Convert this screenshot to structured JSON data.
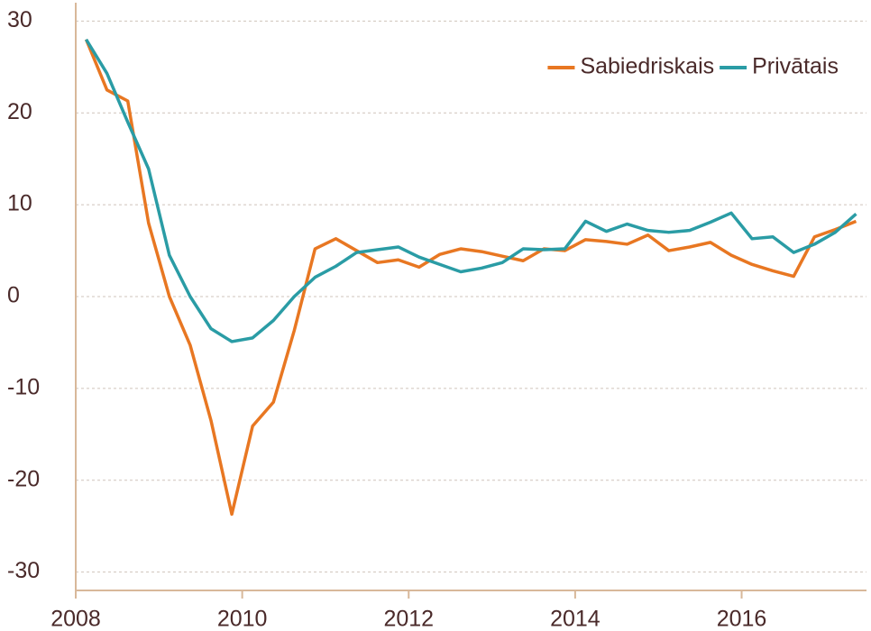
{
  "chart_data": {
    "type": "line",
    "x": [
      2008.125,
      2008.375,
      2008.625,
      2008.875,
      2009.125,
      2009.375,
      2009.625,
      2009.875,
      2010.125,
      2010.375,
      2010.625,
      2010.875,
      2011.125,
      2011.375,
      2011.625,
      2011.875,
      2012.125,
      2012.375,
      2012.625,
      2012.875,
      2013.125,
      2013.375,
      2013.625,
      2013.875,
      2014.125,
      2014.375,
      2014.625,
      2014.875,
      2015.125,
      2015.375,
      2015.625,
      2015.875,
      2016.125,
      2016.375,
      2016.625,
      2016.875,
      2017.125,
      2017.375
    ],
    "series": [
      {
        "name": "Sabiedriskais",
        "color": "#e87722",
        "values": [
          28,
          22.5,
          21.3,
          8,
          0,
          -5.3,
          -13.5,
          -23.7,
          -14.1,
          -11.5,
          -3.7,
          5.2,
          6.3,
          5.0,
          3.7,
          4.0,
          3.2,
          4.6,
          5.2,
          4.9,
          4.4,
          3.9,
          5.2,
          5.0,
          6.2,
          6.0,
          5.7,
          6.7,
          5.0,
          5.4,
          5.9,
          4.5,
          3.5,
          2.8,
          2.2,
          6.5,
          7.3,
          8.2
        ]
      },
      {
        "name": "Privātais",
        "color": "#2a9ca5",
        "values": [
          28,
          24.3,
          19,
          13.9,
          4.5,
          0,
          -3.5,
          -4.9,
          -4.5,
          -2.6,
          0,
          2.1,
          3.3,
          4.8,
          5.1,
          5.4,
          4.3,
          3.5,
          2.7,
          3.1,
          3.7,
          5.2,
          5.1,
          5.2,
          8.2,
          7.1,
          7.9,
          7.2,
          7.0,
          7.2,
          8.1,
          9.1,
          6.3,
          6.5,
          4.8,
          5.7,
          7.0,
          9.0
        ]
      }
    ],
    "xlim": [
      2008,
      2017.5
    ],
    "xticks": [
      2008,
      2010,
      2012,
      2014,
      2016
    ],
    "ylim": [
      -32,
      32
    ],
    "yticks": [
      -30,
      -20,
      -10,
      0,
      10,
      20,
      30
    ],
    "grid": true,
    "legend": "upper right"
  }
}
